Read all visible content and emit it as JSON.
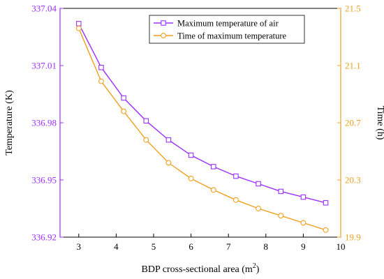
{
  "chart_data": {
    "type": "line",
    "xlabel": "BDP cross-sectional area (m²)",
    "xlabel_main": "BDP cross-sectional area (m",
    "xlabel_sup": "2",
    "xlabel_end": ")",
    "ylabel_left": "Temperature (K)",
    "ylabel_right": "Time (h)",
    "xlim": [
      2.5,
      10
    ],
    "x_ticks": [
      3,
      4,
      5,
      6,
      7,
      8,
      9,
      10
    ],
    "ylim_left": [
      336.92,
      337.04
    ],
    "y_ticks_left": [
      "336.92",
      "336.95",
      "336.98",
      "337.01",
      "337.04"
    ],
    "ylim_right": [
      19.9,
      21.5
    ],
    "y_ticks_right": [
      "19.9",
      "20.3",
      "20.7",
      "21.1",
      "21.5"
    ],
    "x": [
      3.0,
      3.6,
      4.2,
      4.8,
      5.4,
      6.0,
      6.6,
      7.2,
      7.8,
      8.4,
      9.0,
      9.6
    ],
    "series": [
      {
        "name": "Maximum temperature of air",
        "axis": "left",
        "marker": "square",
        "color": "#9b30ff",
        "values": [
          337.032,
          337.009,
          336.993,
          336.981,
          336.971,
          336.963,
          336.957,
          336.952,
          336.948,
          336.944,
          336.941,
          336.938
        ]
      },
      {
        "name": "Time of maximum temperature",
        "axis": "right",
        "marker": "circle",
        "color": "#f0a020",
        "values": [
          21.36,
          20.99,
          20.78,
          20.58,
          20.42,
          20.31,
          20.23,
          20.16,
          20.1,
          20.05,
          20.0,
          19.95
        ]
      }
    ],
    "legend_position": "top-right",
    "left_axis_color": "#9b30ff",
    "right_axis_color": "#f0a020"
  }
}
